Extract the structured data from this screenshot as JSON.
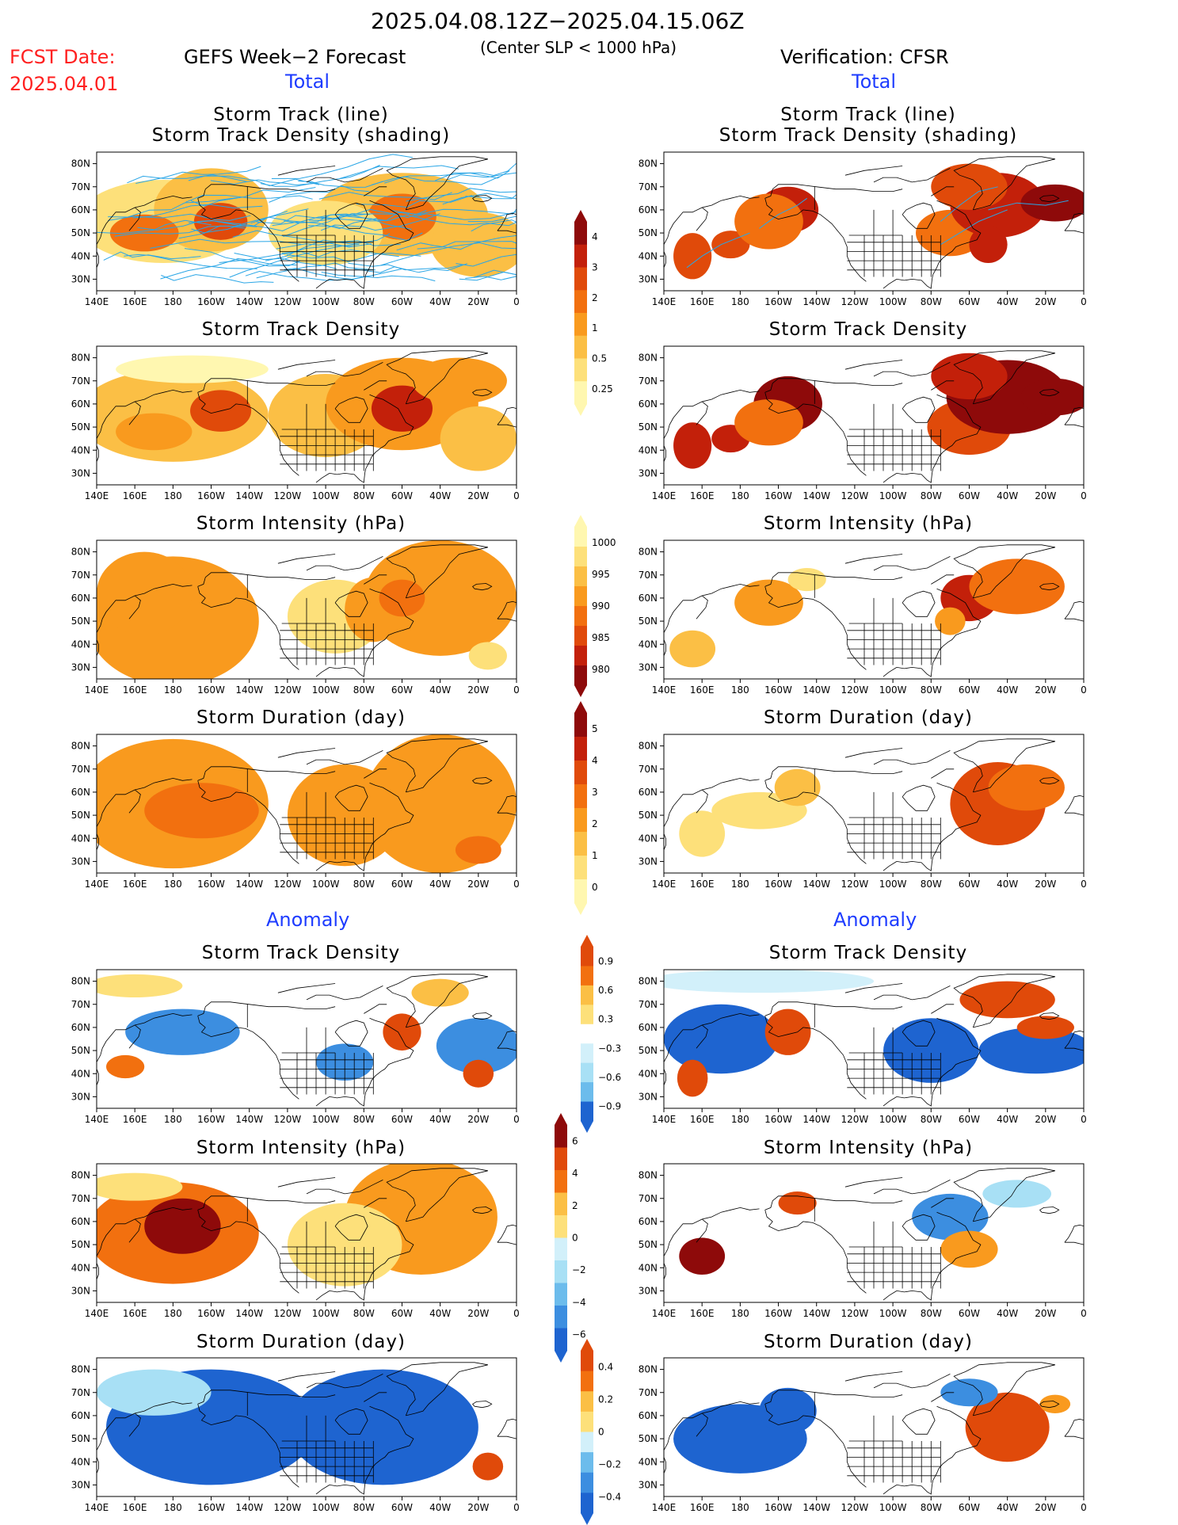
{
  "header": {
    "date_range": "2025.04.08.12Z−2025.04.15.06Z",
    "fcst_label": "FCST Date:",
    "fcst_date": "2025.04.01",
    "left_title": "GEFS Week−2 Forecast",
    "condition": "(Center SLP < 1000 hPa)",
    "right_title": "Verification: CFSR",
    "total_label": "Total",
    "anomaly_label": "Anomaly"
  },
  "axes": {
    "lat_labels": [
      "80N",
      "70N",
      "60N",
      "50N",
      "40N",
      "30N"
    ],
    "lon_labels": [
      "140E",
      "160E",
      "180",
      "160W",
      "140W",
      "120W",
      "100W",
      "80W",
      "60W",
      "40W",
      "20W",
      "0"
    ]
  },
  "panel_titles": {
    "track_line": "Storm Track (line)",
    "track_shading": "Storm Track Density (shading)",
    "density": "Storm Track Density",
    "intensity": "Storm Intensity (hPa)",
    "duration": "Storm Duration (day)"
  },
  "colorbars": {
    "density_total": [
      "4",
      "3",
      "2",
      "1",
      "0.5",
      "0.25"
    ],
    "intensity_total": [
      "1000",
      "995",
      "990",
      "985",
      "980"
    ],
    "duration_total": [
      "5",
      "4",
      "3",
      "2",
      "1",
      "0"
    ],
    "density_anom": [
      "0.9",
      "0.6",
      "0.3",
      "−0.3",
      "−0.6",
      "−0.9"
    ],
    "intensity_anom": [
      "6",
      "4",
      "2",
      "0",
      "−2",
      "−4",
      "−6"
    ],
    "duration_anom": [
      "0.4",
      "0.2",
      "0",
      "−0.2",
      "−0.4"
    ]
  },
  "colors": {
    "warm": [
      "#fff7b0",
      "#fde07a",
      "#fbbf45",
      "#f99a1e",
      "#f2700f",
      "#e04a0a",
      "#c3200a",
      "#8e0a0a"
    ],
    "cool": [
      "#d2f0fa",
      "#a8e0f5",
      "#6cbcec",
      "#3c8ee0",
      "#1e64d0"
    ],
    "track_line": "#2aa6e6",
    "title_blue": "#1e3cff",
    "fcst_red": "#ff2020"
  },
  "chart_data": {
    "type": "heatmap",
    "domain": {
      "lon_range": [
        "140E",
        "0"
      ],
      "lat_range": [
        "25N",
        "85N"
      ]
    },
    "panels": [
      {
        "column": "forecast",
        "row": 1,
        "field": "storm track density + tracks",
        "units": "",
        "hotspots": [
          "155W 55N",
          "60W 57N"
        ]
      },
      {
        "column": "verification",
        "row": 1,
        "field": "storm track density + tracks",
        "units": "",
        "hotspots": [
          "150W 60N",
          "45W 62N",
          "10W 62N"
        ]
      },
      {
        "column": "forecast",
        "row": 2,
        "field": "storm track density",
        "units": "",
        "max_approx": 3
      },
      {
        "column": "verification",
        "row": 2,
        "field": "storm track density",
        "units": "",
        "max_approx": 4
      },
      {
        "column": "forecast",
        "row": 3,
        "field": "storm intensity",
        "units": "hPa",
        "range": [
          985,
          1000
        ]
      },
      {
        "column": "verification",
        "row": 3,
        "field": "storm intensity",
        "units": "hPa",
        "range": [
          980,
          1000
        ]
      },
      {
        "column": "forecast",
        "row": 4,
        "field": "storm duration",
        "units": "day",
        "range": [
          1,
          3
        ]
      },
      {
        "column": "verification",
        "row": 4,
        "field": "storm duration",
        "units": "day",
        "range": [
          1,
          4
        ]
      },
      {
        "column": "forecast",
        "row": 5,
        "field": "storm track density anomaly",
        "units": "",
        "range": [
          -0.9,
          0.9
        ]
      },
      {
        "column": "verification",
        "row": 5,
        "field": "storm track density anomaly",
        "units": "",
        "range": [
          -0.9,
          0.9
        ]
      },
      {
        "column": "forecast",
        "row": 6,
        "field": "storm intensity anomaly",
        "units": "hPa",
        "range": [
          -6,
          6
        ]
      },
      {
        "column": "verification",
        "row": 6,
        "field": "storm intensity anomaly",
        "units": "hPa",
        "range": [
          -6,
          6
        ]
      },
      {
        "column": "forecast",
        "row": 7,
        "field": "storm duration anomaly",
        "units": "day",
        "range": [
          -0.4,
          0.4
        ]
      },
      {
        "column": "verification",
        "row": 7,
        "field": "storm duration anomaly",
        "units": "day",
        "range": [
          -0.4,
          0.4
        ]
      }
    ]
  }
}
